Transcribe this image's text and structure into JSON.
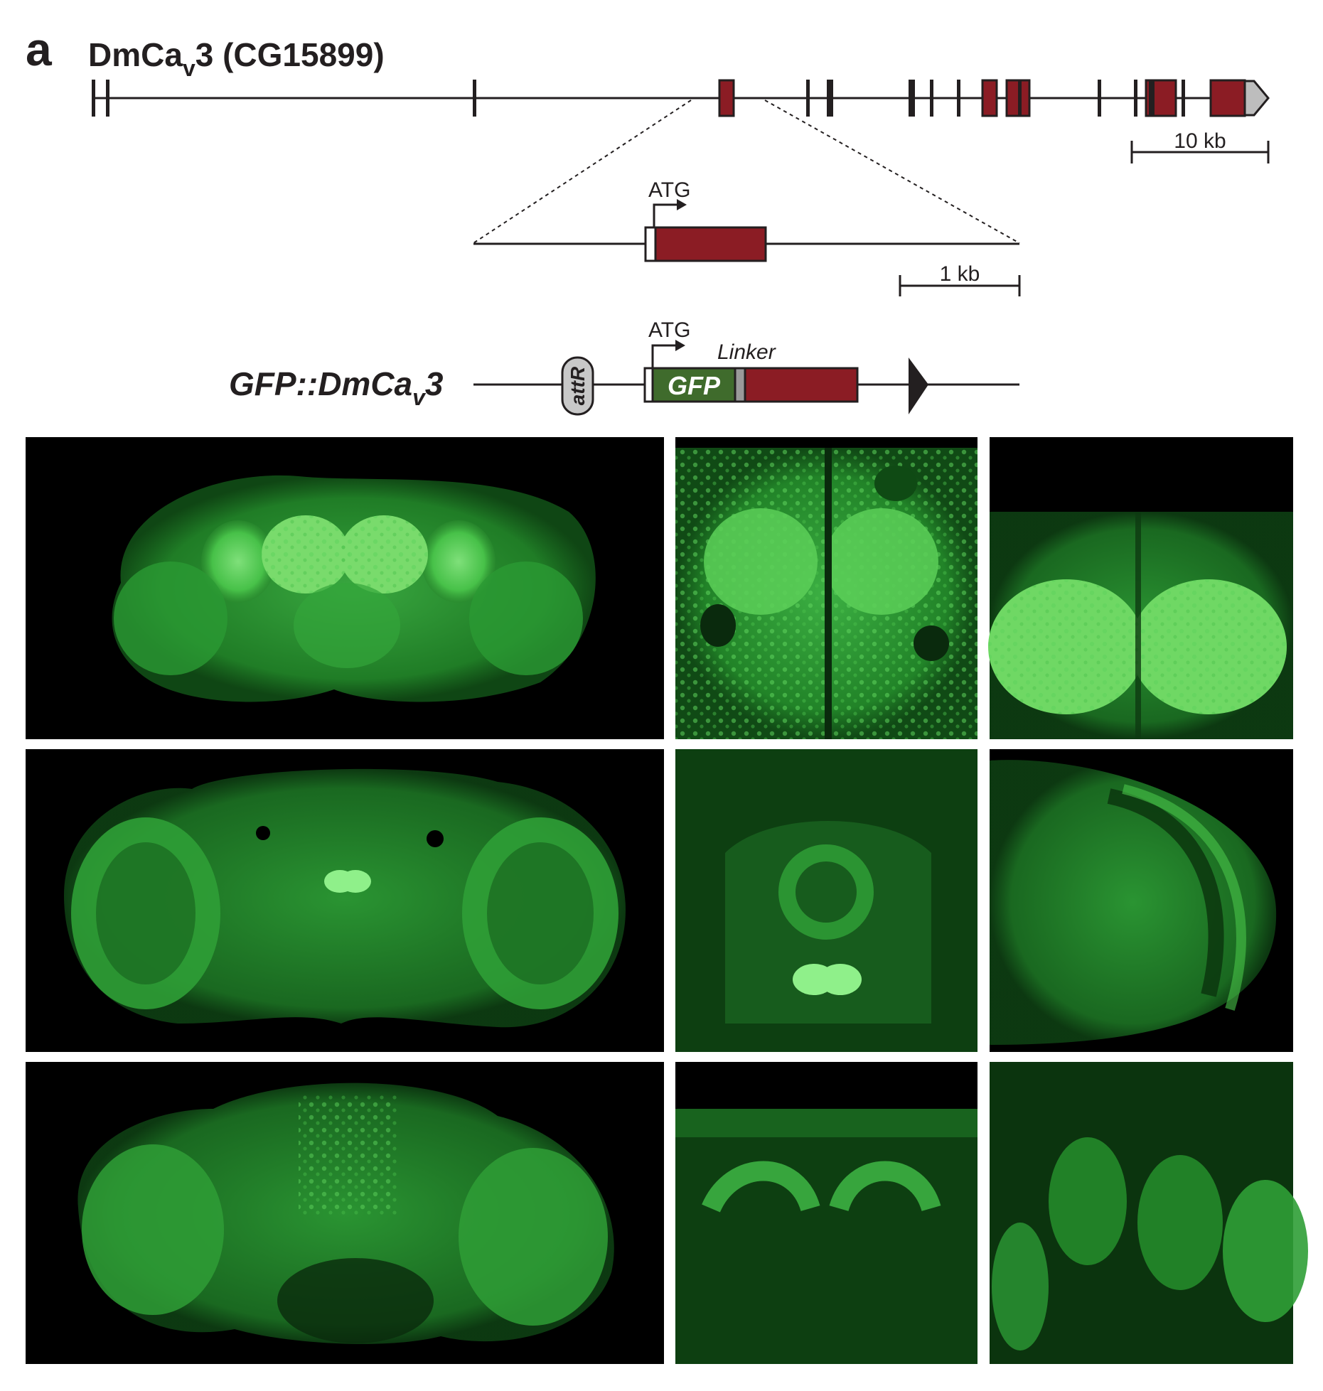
{
  "panel_label": "a",
  "gene": {
    "name": "DmCa",
    "name_subscript": "v",
    "name_suffix": "3 (CG15899)"
  },
  "scale_bars": {
    "gene_scale": "10 kb",
    "zoom_scale": "1 kb"
  },
  "zoom": {
    "start_label": "ATG"
  },
  "construct": {
    "name_prefix": "GFP::DmCa",
    "name_subscript": "v",
    "name_suffix": "3",
    "start_label": "ATG",
    "attr_label": "attR",
    "gfp_label": "GFP",
    "linker_label": "Linker"
  },
  "colors": {
    "exon": "#8b1c24",
    "gfp": "#3f6b2c",
    "linker": "#9a9a9a",
    "line": "#231f20",
    "micrograph_background": "#000000",
    "fluorescence": "#3dbb3d"
  }
}
